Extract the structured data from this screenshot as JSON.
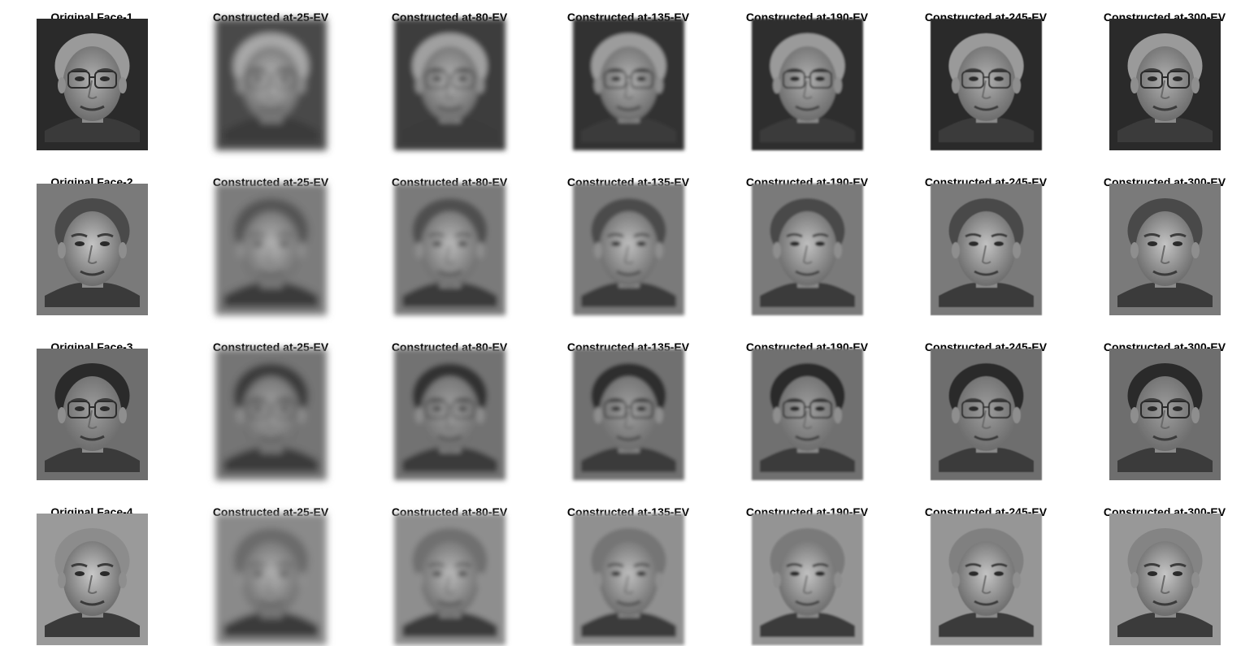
{
  "rows": [
    {
      "face": "Face-1",
      "cells": [
        {
          "title": "Original Face-1",
          "sharpness": 1.0,
          "glasses": true,
          "hair_tone": "#9a9a9a",
          "bg_tone": "#2a2a2a",
          "skin_tone": "#b0b0b0"
        },
        {
          "title": "Constructed at-25-EV",
          "sharpness": 0.1,
          "glasses": true,
          "hair_tone": "#a8a8a8",
          "bg_tone": "#4a4a4a",
          "skin_tone": "#bcbcbc"
        },
        {
          "title": "Constructed at-80-EV",
          "sharpness": 0.35,
          "glasses": true,
          "hair_tone": "#a0a0a0",
          "bg_tone": "#3c3c3c",
          "skin_tone": "#b4b4b4"
        },
        {
          "title": "Constructed at-135-EV",
          "sharpness": 0.55,
          "glasses": true,
          "hair_tone": "#9c9c9c",
          "bg_tone": "#333333",
          "skin_tone": "#b2b2b2"
        },
        {
          "title": "Constructed at-190-EV",
          "sharpness": 0.75,
          "glasses": true,
          "hair_tone": "#9a9a9a",
          "bg_tone": "#2e2e2e",
          "skin_tone": "#b0b0b0"
        },
        {
          "title": "Constructed at-245-EV",
          "sharpness": 0.88,
          "glasses": true,
          "hair_tone": "#9a9a9a",
          "bg_tone": "#2b2b2b",
          "skin_tone": "#b0b0b0"
        },
        {
          "title": "Constructed at-300-EV",
          "sharpness": 0.95,
          "glasses": true,
          "hair_tone": "#9a9a9a",
          "bg_tone": "#2a2a2a",
          "skin_tone": "#b0b0b0"
        }
      ]
    },
    {
      "face": "Face-2",
      "cells": [
        {
          "title": "Original Face-2",
          "sharpness": 1.0,
          "glasses": false,
          "hair_tone": "#4a4a4a",
          "bg_tone": "#7a7a7a",
          "skin_tone": "#c4c4c4"
        },
        {
          "title": "Constructed at-25-EV",
          "sharpness": 0.1,
          "glasses": false,
          "hair_tone": "#555555",
          "bg_tone": "#7c7c7c",
          "skin_tone": "#b6b6b6"
        },
        {
          "title": "Constructed at-80-EV",
          "sharpness": 0.35,
          "glasses": false,
          "hair_tone": "#505050",
          "bg_tone": "#7a7a7a",
          "skin_tone": "#bababa"
        },
        {
          "title": "Constructed at-135-EV",
          "sharpness": 0.55,
          "glasses": false,
          "hair_tone": "#4c4c4c",
          "bg_tone": "#7a7a7a",
          "skin_tone": "#bebebe"
        },
        {
          "title": "Constructed at-190-EV",
          "sharpness": 0.75,
          "glasses": false,
          "hair_tone": "#4a4a4a",
          "bg_tone": "#7a7a7a",
          "skin_tone": "#c0c0c0"
        },
        {
          "title": "Constructed at-245-EV",
          "sharpness": 0.88,
          "glasses": false,
          "hair_tone": "#4a4a4a",
          "bg_tone": "#7a7a7a",
          "skin_tone": "#c2c2c2"
        },
        {
          "title": "Constructed at-300-EV",
          "sharpness": 0.95,
          "glasses": false,
          "hair_tone": "#4a4a4a",
          "bg_tone": "#7a7a7a",
          "skin_tone": "#c4c4c4"
        }
      ]
    },
    {
      "face": "Face-3",
      "cells": [
        {
          "title": "Original Face-3",
          "sharpness": 1.0,
          "glasses": true,
          "hair_tone": "#2a2a2a",
          "bg_tone": "#6e6e6e",
          "skin_tone": "#9e9e9e"
        },
        {
          "title": "Constructed at-25-EV",
          "sharpness": 0.1,
          "glasses": true,
          "hair_tone": "#3a3a3a",
          "bg_tone": "#747474",
          "skin_tone": "#a6a6a6"
        },
        {
          "title": "Constructed at-80-EV",
          "sharpness": 0.35,
          "glasses": true,
          "hair_tone": "#333333",
          "bg_tone": "#727272",
          "skin_tone": "#a2a2a2"
        },
        {
          "title": "Constructed at-135-EV",
          "sharpness": 0.55,
          "glasses": true,
          "hair_tone": "#2e2e2e",
          "bg_tone": "#707070",
          "skin_tone": "#a0a0a0"
        },
        {
          "title": "Constructed at-190-EV",
          "sharpness": 0.75,
          "glasses": true,
          "hair_tone": "#2c2c2c",
          "bg_tone": "#6f6f6f",
          "skin_tone": "#9f9f9f"
        },
        {
          "title": "Constructed at-245-EV",
          "sharpness": 0.88,
          "glasses": true,
          "hair_tone": "#2a2a2a",
          "bg_tone": "#6e6e6e",
          "skin_tone": "#9e9e9e"
        },
        {
          "title": "Constructed at-300-EV",
          "sharpness": 0.95,
          "glasses": true,
          "hair_tone": "#2a2a2a",
          "bg_tone": "#6e6e6e",
          "skin_tone": "#9e9e9e"
        }
      ]
    },
    {
      "face": "Face-4",
      "cells": [
        {
          "title": "Original Face-4",
          "sharpness": 1.0,
          "glasses": false,
          "hair_tone": "#8c8c8c",
          "bg_tone": "#9a9a9a",
          "skin_tone": "#c8c8c8"
        },
        {
          "title": "Constructed at-25-EV",
          "sharpness": 0.1,
          "glasses": false,
          "hair_tone": "#6a6a6a",
          "bg_tone": "#8a8a8a",
          "skin_tone": "#b4b4b4"
        },
        {
          "title": "Constructed at-80-EV",
          "sharpness": 0.35,
          "glasses": false,
          "hair_tone": "#707070",
          "bg_tone": "#8e8e8e",
          "skin_tone": "#bababa"
        },
        {
          "title": "Constructed at-135-EV",
          "sharpness": 0.55,
          "glasses": false,
          "hair_tone": "#747474",
          "bg_tone": "#909090",
          "skin_tone": "#bebebe"
        },
        {
          "title": "Constructed at-190-EV",
          "sharpness": 0.75,
          "glasses": false,
          "hair_tone": "#7a7a7a",
          "bg_tone": "#949494",
          "skin_tone": "#c2c2c2"
        },
        {
          "title": "Constructed at-245-EV",
          "sharpness": 0.88,
          "glasses": false,
          "hair_tone": "#808080",
          "bg_tone": "#969696",
          "skin_tone": "#c4c4c4"
        },
        {
          "title": "Constructed at-300-EV",
          "sharpness": 0.95,
          "glasses": false,
          "hair_tone": "#848484",
          "bg_tone": "#989898",
          "skin_tone": "#c6c6c6"
        }
      ]
    }
  ]
}
